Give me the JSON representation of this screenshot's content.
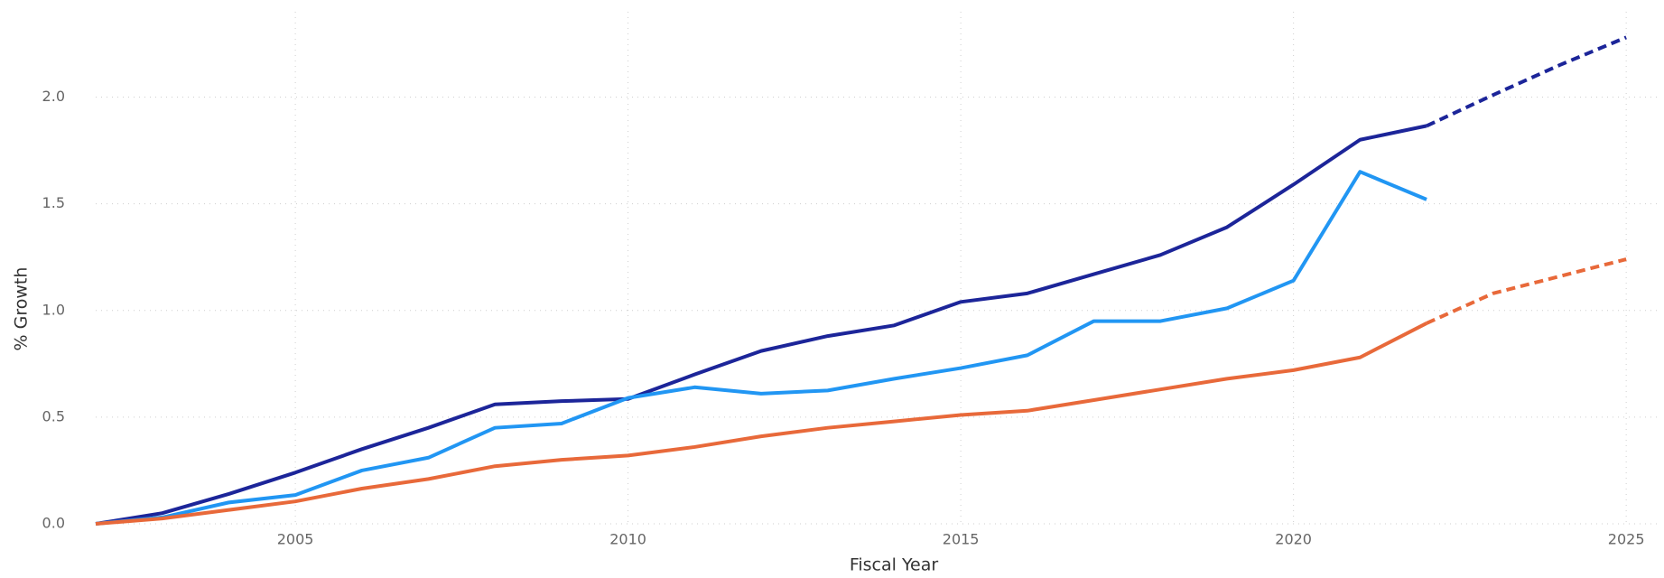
{
  "chart_data": {
    "type": "line",
    "x_label": "Fiscal Year",
    "y_label": "% Growth",
    "x": [
      2002,
      2003,
      2004,
      2005,
      2006,
      2007,
      2008,
      2009,
      2010,
      2011,
      2012,
      2013,
      2014,
      2015,
      2016,
      2017,
      2018,
      2019,
      2020,
      2021,
      2022,
      2023,
      2024,
      2025
    ],
    "series": [
      {
        "color": "#1c2599",
        "dashed": false,
        "values": [
          0,
          0.05,
          0.14,
          0.24,
          0.35,
          0.45,
          0.56,
          0.575,
          0.585,
          0.7,
          0.81,
          0.88,
          0.93,
          1.04,
          1.08,
          1.17,
          1.26,
          1.39,
          1.59,
          1.8,
          1.865,
          null,
          null,
          null
        ]
      },
      {
        "color": "#1c2599",
        "dashed": true,
        "values": [
          null,
          null,
          null,
          null,
          null,
          null,
          null,
          null,
          null,
          null,
          null,
          null,
          null,
          null,
          null,
          null,
          null,
          null,
          null,
          null,
          1.865,
          2.01,
          2.15,
          2.28
        ]
      },
      {
        "color": "#2196f3",
        "dashed": false,
        "values": [
          0,
          0.03,
          0.1,
          0.135,
          0.25,
          0.31,
          0.45,
          0.47,
          0.59,
          0.64,
          0.61,
          0.625,
          0.68,
          0.73,
          0.79,
          0.95,
          0.95,
          1.01,
          1.14,
          1.65,
          1.52,
          null,
          null,
          null
        ]
      },
      {
        "color": "#e8693a",
        "dashed": false,
        "values": [
          0,
          0.025,
          0.065,
          0.105,
          0.165,
          0.21,
          0.27,
          0.3,
          0.32,
          0.36,
          0.41,
          0.45,
          0.48,
          0.51,
          0.53,
          0.58,
          0.63,
          0.68,
          0.72,
          0.78,
          0.94,
          null,
          null,
          null
        ]
      },
      {
        "color": "#e8693a",
        "dashed": true,
        "values": [
          null,
          null,
          null,
          null,
          null,
          null,
          null,
          null,
          null,
          null,
          null,
          null,
          null,
          null,
          null,
          null,
          null,
          null,
          null,
          null,
          0.94,
          1.08,
          1.16,
          1.24
        ]
      }
    ],
    "xlim": [
      2002,
      2025.5
    ],
    "ylim": [
      0,
      2.4
    ],
    "xticks": [
      2005,
      2010,
      2015,
      2020,
      2025
    ],
    "yticks": [
      {
        "value": 0,
        "label": "0.0"
      },
      0.5,
      {
        "value": 1,
        "label": "1.0"
      },
      1.5,
      {
        "value": 2,
        "label": "2.0"
      }
    ],
    "grid": true
  }
}
